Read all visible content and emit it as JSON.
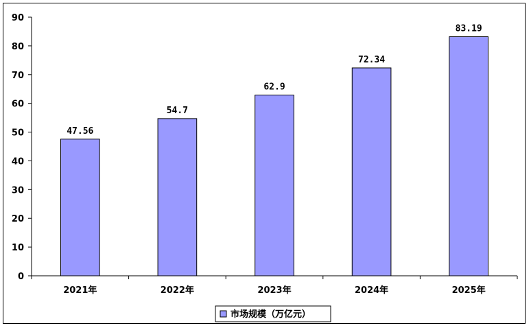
{
  "chart_data": {
    "type": "bar",
    "categories": [
      "2021年",
      "2022年",
      "2023年",
      "2024年",
      "2025年"
    ],
    "series": [
      {
        "name": "市场规模（万亿元）",
        "values": [
          47.56,
          54.7,
          62.9,
          72.34,
          83.19
        ]
      }
    ],
    "data_labels": [
      "47.56",
      "54.7",
      "62.9",
      "72.34",
      "83.19"
    ],
    "ylim": [
      0,
      90
    ],
    "yticks": [
      0,
      10,
      20,
      30,
      40,
      50,
      60,
      70,
      80,
      90
    ],
    "grid": false,
    "legend_position": "bottom",
    "bar_color": "#9999ff",
    "bar_edge_color": "#000000"
  }
}
